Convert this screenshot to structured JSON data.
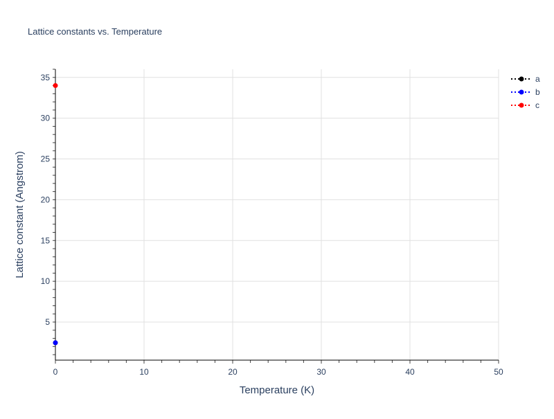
{
  "chart_data": {
    "type": "scatter",
    "mode": "lines+markers",
    "title": "Lattice constants vs. Temperature",
    "xlabel": "Temperature (K)",
    "ylabel": "Lattice constant (Angstrom)",
    "xlim": [
      0,
      50
    ],
    "ylim": [
      0.33,
      36.0
    ],
    "xticks": [
      0,
      10,
      20,
      30,
      40,
      50
    ],
    "yticks": [
      5,
      10,
      15,
      20,
      25,
      30,
      35
    ],
    "x_minor_tick_step": 2,
    "y_minor_tick_step": 1,
    "grid": true,
    "legend_position": "top-right",
    "series": [
      {
        "name": "a",
        "color": "#000000",
        "line_dash": "dot",
        "x": [
          0
        ],
        "y": [
          2.46
        ]
      },
      {
        "name": "b",
        "color": "#0000ff",
        "line_dash": "dot",
        "x": [
          0
        ],
        "y": [
          2.46
        ]
      },
      {
        "name": "c",
        "color": "#ff0000",
        "line_dash": "dot",
        "x": [
          0
        ],
        "y": [
          34.0
        ]
      }
    ]
  }
}
